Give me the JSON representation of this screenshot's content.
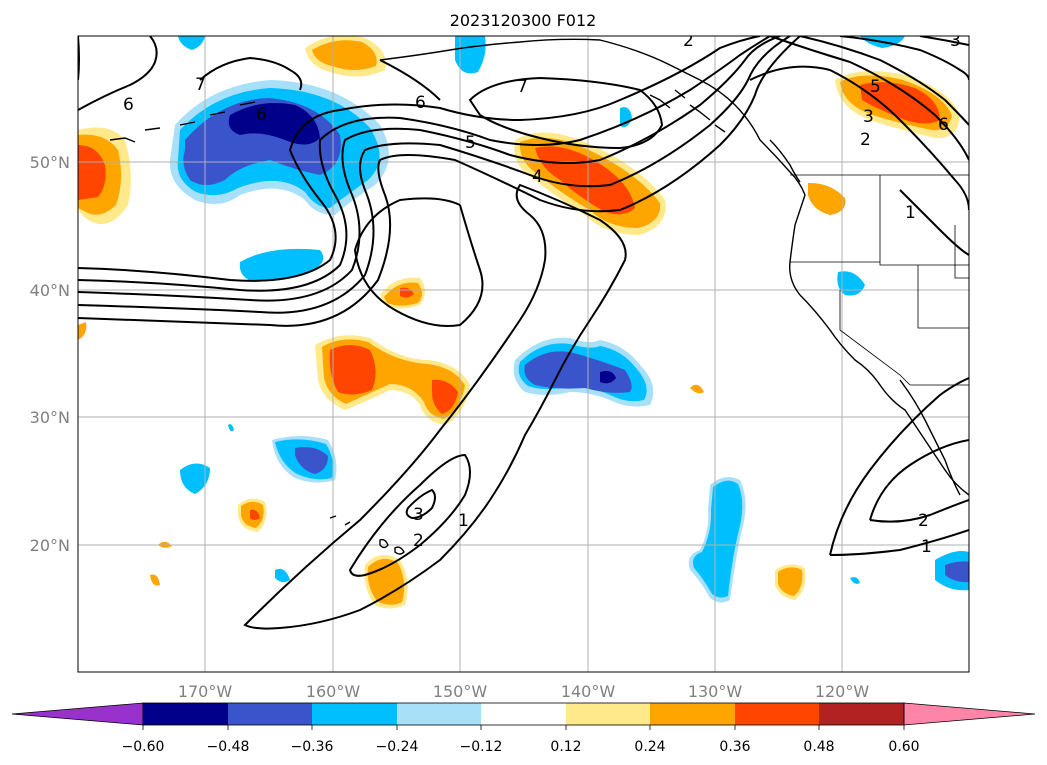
{
  "title": "2023120300 F012",
  "lon_labels": [
    "170°W",
    "160°W",
    "150°W",
    "140°W",
    "130°W",
    "120°W"
  ],
  "lat_labels": [
    "50°N",
    "40°N",
    "30°N",
    "20°N"
  ],
  "colorbar": {
    "tick_labels": [
      "−0.60",
      "−0.48",
      "−0.36",
      "−0.24",
      "−0.12",
      "0.12",
      "0.24",
      "0.36",
      "0.48",
      "0.60"
    ],
    "colors": [
      "#9932cc",
      "#00008b",
      "#3a55cc",
      "#00bfff",
      "#a8e0fa",
      "#ffffff",
      "#ffe98a",
      "#ffa500",
      "#ff4500",
      "#b22222",
      "#ff85a8"
    ]
  },
  "contour_labels": [
    "6",
    "7",
    "6",
    "7",
    "6",
    "5",
    "4",
    "5",
    "3",
    "2",
    "1",
    "6",
    "3",
    "2",
    "1",
    "2",
    "1",
    "3",
    "2"
  ],
  "colors": {
    "contour": "#000000",
    "grid": "#b0b0b0",
    "axis_label": "#808080"
  }
}
